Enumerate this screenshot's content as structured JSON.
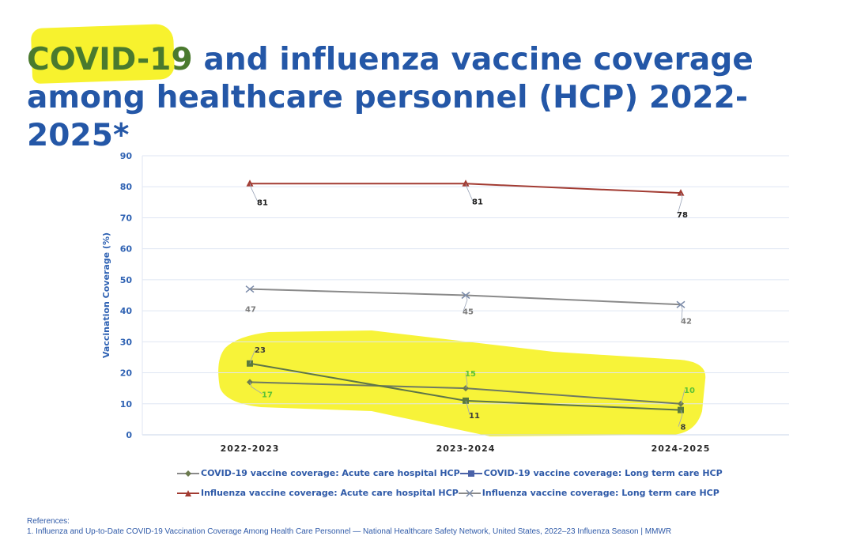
{
  "slide": {
    "title_part1": "COVID-19",
    "title_part2": " and influenza vaccine coverage among healthcare personnel (HCP) 2022-2025*",
    "references_label": "References:",
    "reference_1": "1. Influenza and Up-to-Date COVID-19 Vaccination Coverage Among Health Care Personnel — National Healthcare Safety Network, United States, 2022–23 Influenza Season | MMWR"
  },
  "colors": {
    "highlight": "#f7f22e",
    "title": "#2457a7",
    "covid_acute": "#6b7a4e",
    "covid_ltc": "#5b7a3c",
    "flu_acute": "#a23b32",
    "flu_ltc": "#8a8a8a",
    "label_green": "#5bc236"
  },
  "chart_data": {
    "type": "line",
    "categories": [
      "2022-2023",
      "2023-2024",
      "2024-2025"
    ],
    "ylabel": "Vaccination Coverage (%)",
    "ylim": [
      0,
      90
    ],
    "yticks": [
      "0",
      "10",
      "20",
      "30",
      "40",
      "50",
      "60",
      "70",
      "80",
      "90"
    ],
    "grid": true,
    "legend_placement": "bottom",
    "series": [
      {
        "name": "COVID-19 vaccine coverage: Acute care hospital HCP",
        "values": [
          17,
          15,
          10
        ],
        "marker": "diamond",
        "color": "#6b7a4e",
        "label_color": "#5bc236",
        "labels": [
          "17",
          "15",
          "10"
        ]
      },
      {
        "name": "COVID-19 vaccine coverage: Long term care HCP",
        "values": [
          23,
          11,
          8
        ],
        "marker": "square",
        "color": "#5b7a3c",
        "label_color": "#3a3a3a",
        "labels": [
          "23",
          "11",
          "8"
        ]
      },
      {
        "name": "Influenza vaccine coverage: Acute care hospital HCP",
        "values": [
          81,
          81,
          78
        ],
        "marker": "triangle",
        "color": "#a23b32",
        "label_color": "#1a1a1a",
        "labels": [
          "81",
          "81",
          "78"
        ]
      },
      {
        "name": "Influenza vaccine coverage: Long term care HCP",
        "values": [
          47,
          45,
          42
        ],
        "marker": "x",
        "color": "#8a8a8a",
        "label_color": "#7a7a7a",
        "labels": [
          "47",
          "45",
          "42"
        ]
      }
    ]
  }
}
